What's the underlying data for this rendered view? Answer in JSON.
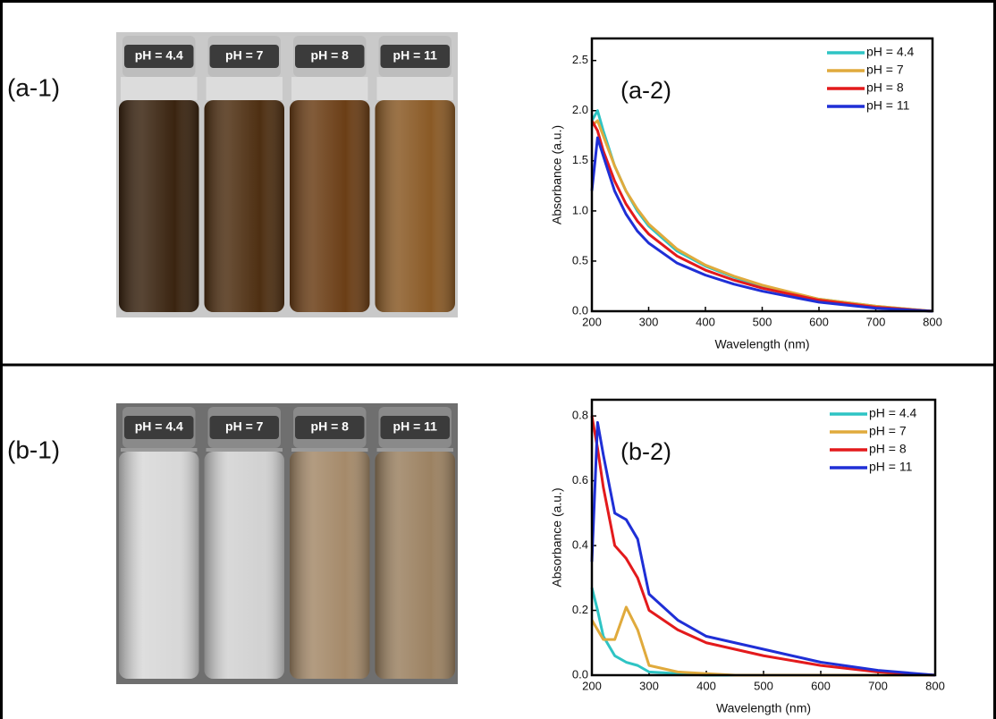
{
  "chart_data": [
    {
      "type": "line",
      "annotation": "(a-2)",
      "x_label": "Wavelength (nm)",
      "y_label": "Absorbance (a.u.)",
      "x": [
        200,
        210,
        220,
        240,
        260,
        280,
        300,
        350,
        400,
        450,
        500,
        600,
        700,
        800
      ],
      "series": [
        {
          "name": "pH = 4.4",
          "color": "#2ec4c4",
          "values": [
            1.9,
            2.0,
            1.8,
            1.45,
            1.2,
            1.0,
            0.85,
            0.6,
            0.45,
            0.34,
            0.25,
            0.12,
            0.05,
            0.0
          ]
        },
        {
          "name": "pH = 7",
          "color": "#e0aa3c",
          "values": [
            1.85,
            1.9,
            1.75,
            1.45,
            1.2,
            1.02,
            0.87,
            0.62,
            0.46,
            0.35,
            0.26,
            0.12,
            0.05,
            0.0
          ]
        },
        {
          "name": "pH = 8",
          "color": "#e31a1c",
          "values": [
            1.9,
            1.8,
            1.6,
            1.3,
            1.07,
            0.9,
            0.77,
            0.55,
            0.41,
            0.31,
            0.23,
            0.11,
            0.04,
            0.0
          ]
        },
        {
          "name": "pH = 11",
          "color": "#1f2fd6",
          "values": [
            1.2,
            1.73,
            1.55,
            1.2,
            0.97,
            0.8,
            0.68,
            0.48,
            0.36,
            0.27,
            0.2,
            0.09,
            0.03,
            0.0
          ]
        }
      ],
      "xlim": [
        200,
        800
      ],
      "xticks": [
        200,
        300,
        400,
        500,
        600,
        700,
        800
      ],
      "ylim": [
        0,
        2.72
      ],
      "yticks": [
        {
          "value": 0,
          "label": "0.0"
        },
        0.5,
        {
          "value": 1,
          "label": "1.0"
        },
        1.5,
        {
          "value": 2,
          "label": "2.0"
        },
        2.5
      ],
      "legend": "upper right"
    },
    {
      "type": "line",
      "annotation": "(b-2)",
      "x_label": "Wavelength (nm)",
      "y_label": "Absorbance (a.u.)",
      "x": [
        200,
        210,
        220,
        240,
        260,
        280,
        300,
        350,
        400,
        450,
        500,
        600,
        700,
        800
      ],
      "series": [
        {
          "name": "pH = 4.4",
          "color": "#2ec4c4",
          "values": [
            0.27,
            0.2,
            0.12,
            0.06,
            0.04,
            0.03,
            0.01,
            0.005,
            0,
            0,
            0,
            0,
            0,
            0
          ]
        },
        {
          "name": "pH = 7",
          "color": "#e0aa3c",
          "values": [
            0.17,
            0.14,
            0.11,
            0.11,
            0.21,
            0.14,
            0.03,
            0.01,
            0.005,
            0,
            0,
            0,
            0,
            0
          ]
        },
        {
          "name": "pH = 8",
          "color": "#e31a1c",
          "values": [
            0.8,
            0.7,
            0.58,
            0.4,
            0.36,
            0.3,
            0.2,
            0.14,
            0.1,
            0.08,
            0.06,
            0.03,
            0.01,
            0
          ]
        },
        {
          "name": "pH = 11",
          "color": "#1f2fd6",
          "values": [
            0.35,
            0.78,
            0.68,
            0.5,
            0.48,
            0.42,
            0.25,
            0.17,
            0.12,
            0.1,
            0.08,
            0.04,
            0.015,
            0
          ]
        }
      ],
      "xlim": [
        200,
        800
      ],
      "xticks": [
        200,
        300,
        400,
        500,
        600,
        700,
        800
      ],
      "ylim": [
        0,
        0.85
      ],
      "yticks": [
        {
          "value": 0,
          "label": "0.0"
        },
        0.2,
        0.4,
        0.6,
        0.8
      ],
      "legend": "upper right"
    }
  ],
  "photos": [
    {
      "label": "(a-1)",
      "vial_labels": [
        "pH = 4.4",
        "pH = 7",
        "pH = 8",
        "pH = 11"
      ]
    },
    {
      "label": "(b-1)",
      "vial_labels": [
        "pH = 4.4",
        "pH = 7",
        "pH = 8",
        "pH = 11"
      ]
    }
  ]
}
